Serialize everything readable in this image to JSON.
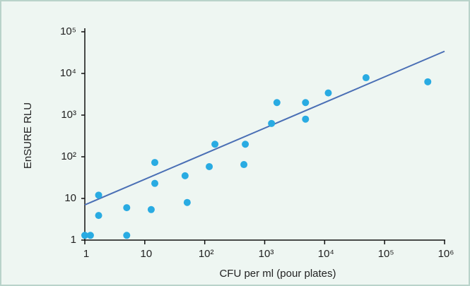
{
  "chart_data": {
    "type": "scatter",
    "xlabel": "CFU per ml (pour plates)",
    "ylabel": "EnSURE RLU",
    "log_x": true,
    "log_y": true,
    "grid": false,
    "xlim": [
      1,
      1000000
    ],
    "ylim": [
      1,
      100000
    ],
    "xticks": [
      1,
      10,
      {
        "value": 100,
        "label": "10²"
      },
      {
        "value": 1000,
        "label": "10³"
      },
      {
        "value": 10000,
        "label": "10⁴"
      },
      {
        "value": 100000,
        "label": "10⁵"
      },
      {
        "value": 1000000,
        "label": "10⁶"
      }
    ],
    "yticks": [
      1,
      10,
      {
        "value": 100,
        "label": "10²"
      },
      {
        "value": 1000,
        "label": "10³"
      },
      {
        "value": 10000,
        "label": "10⁴"
      },
      {
        "value": 100000,
        "label": "10⁵"
      }
    ],
    "color": "#29abe2",
    "x": [
      1,
      1.24,
      1.7,
      1.7,
      5,
      5,
      12.8,
      14.7,
      14.7,
      47,
      51,
      119,
      148,
      450,
      475,
      1300,
      1600,
      4800,
      4800,
      11500,
      49000,
      525000
    ],
    "values": [
      1.3,
      1.3,
      12,
      3.9,
      6,
      1.3,
      5.4,
      73,
      23,
      35,
      8,
      58,
      200,
      65,
      200,
      630,
      2000,
      2000,
      800,
      3400,
      7900,
      6300
    ],
    "trendline": {
      "x": [
        1,
        1000000
      ],
      "values": [
        7,
        34000
      ],
      "color": "#4a6fb5"
    }
  }
}
